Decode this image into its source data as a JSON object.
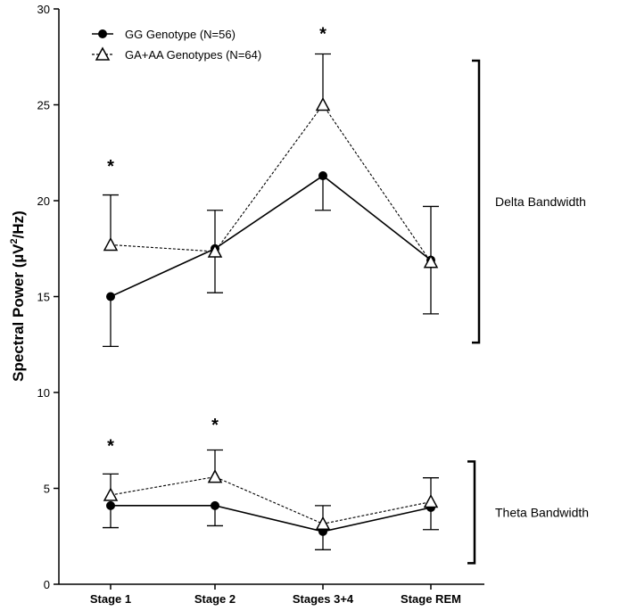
{
  "chart_data": {
    "type": "line",
    "categories": [
      "Stage 1",
      "Stage 2",
      "Stages 3+4",
      "Stage REM"
    ],
    "ylabel_prefix": "Spectral Power (",
    "ylabel_unit": "µV",
    "ylabel_sup": "2",
    "ylabel_suffix": "/Hz)",
    "ylim": [
      0,
      30
    ],
    "yticks": [
      0,
      5,
      10,
      15,
      20,
      25,
      30
    ],
    "series": [
      {
        "name": "GG Genotype (N=56)",
        "marker": "circle",
        "line_style": "solid",
        "groups": [
          {
            "values": [
              15.0,
              17.5,
              21.3,
              16.9
            ],
            "errors": [
              2.6,
              2.3,
              1.8,
              2.8
            ],
            "error_direction": [
              "down",
              "down",
              "down",
              "down"
            ]
          },
          {
            "values": [
              4.1,
              4.1,
              2.75,
              4.0
            ],
            "errors": [
              1.15,
              1.05,
              0.95,
              1.15
            ],
            "error_direction": [
              "down",
              "down",
              "down",
              "down"
            ]
          }
        ]
      },
      {
        "name": "GA+AA  Genotypes (N=64)",
        "marker": "triangle",
        "line_style": "dashed",
        "groups": [
          {
            "values": [
              17.7,
              17.35,
              25.0,
              16.8
            ],
            "errors": [
              2.6,
              2.15,
              2.65,
              2.9
            ],
            "error_direction": [
              "up",
              "up",
              "up",
              "up"
            ]
          },
          {
            "values": [
              4.65,
              5.6,
              3.15,
              4.3
            ],
            "errors": [
              1.1,
              1.4,
              0.95,
              1.25
            ],
            "error_direction": [
              "up",
              "up",
              "up",
              "up"
            ]
          }
        ]
      }
    ],
    "significance": [
      {
        "category_index": 0,
        "y": 21.5,
        "label": "*"
      },
      {
        "category_index": 2,
        "y": 28.4,
        "label": "*"
      },
      {
        "category_index": 0,
        "y": 6.9,
        "label": "*"
      },
      {
        "category_index": 1,
        "y": 8.0,
        "label": "*"
      }
    ],
    "brackets": [
      {
        "label": "Delta Bandwidth",
        "y_range": [
          12.6,
          27.3
        ]
      },
      {
        "label": "Theta Bandwidth",
        "y_range": [
          1.1,
          6.4
        ]
      }
    ]
  }
}
